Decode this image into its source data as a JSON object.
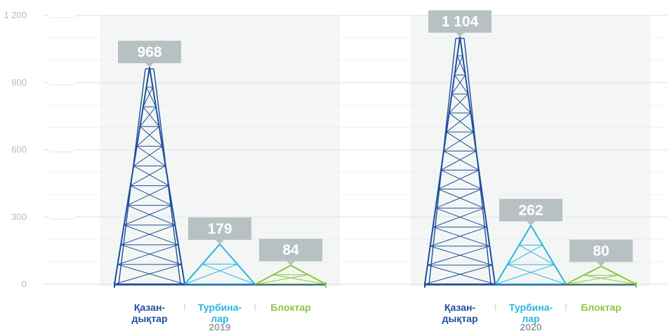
{
  "chart_data": {
    "type": "bar",
    "title": "",
    "xlabel": "",
    "ylabel": "",
    "ylim": [
      0,
      1200
    ],
    "yticks": [
      0,
      300,
      600,
      900,
      1200
    ],
    "ytick_labels": [
      "0",
      "300",
      "600",
      "900",
      "1 200"
    ],
    "grid": true,
    "groups": [
      {
        "year": "2019",
        "bars": [
          {
            "label_lines": [
              "Қазан-",
              "дықтар"
            ],
            "value": 968,
            "value_label": "968",
            "color": "#1f4e9c"
          },
          {
            "label_lines": [
              "Турбина-",
              "лар"
            ],
            "value": 179,
            "value_label": "179",
            "color": "#29b6e0"
          },
          {
            "label_lines": [
              "Блоктар"
            ],
            "value": 84,
            "value_label": "84",
            "color": "#8cc63f"
          }
        ]
      },
      {
        "year": "2020",
        "bars": [
          {
            "label_lines": [
              "Қазан-",
              "дықтар"
            ],
            "value": 1104,
            "value_label": "1 104",
            "color": "#1f4e9c"
          },
          {
            "label_lines": [
              "Турбина-",
              "лар"
            ],
            "value": 262,
            "value_label": "262",
            "color": "#29b6e0"
          },
          {
            "label_lines": [
              "Блоктар"
            ],
            "value": 80,
            "value_label": "80",
            "color": "#8cc63f"
          }
        ]
      }
    ]
  },
  "colors": {
    "label_box": "#b7c1c4",
    "group_background": "#f3f6f4",
    "grid": "#e3e6e8",
    "year_text": "#9aa0a6",
    "axis_gradient_top": "#8cc63f",
    "axis_gradient_bottom": "#1fb3e0"
  }
}
